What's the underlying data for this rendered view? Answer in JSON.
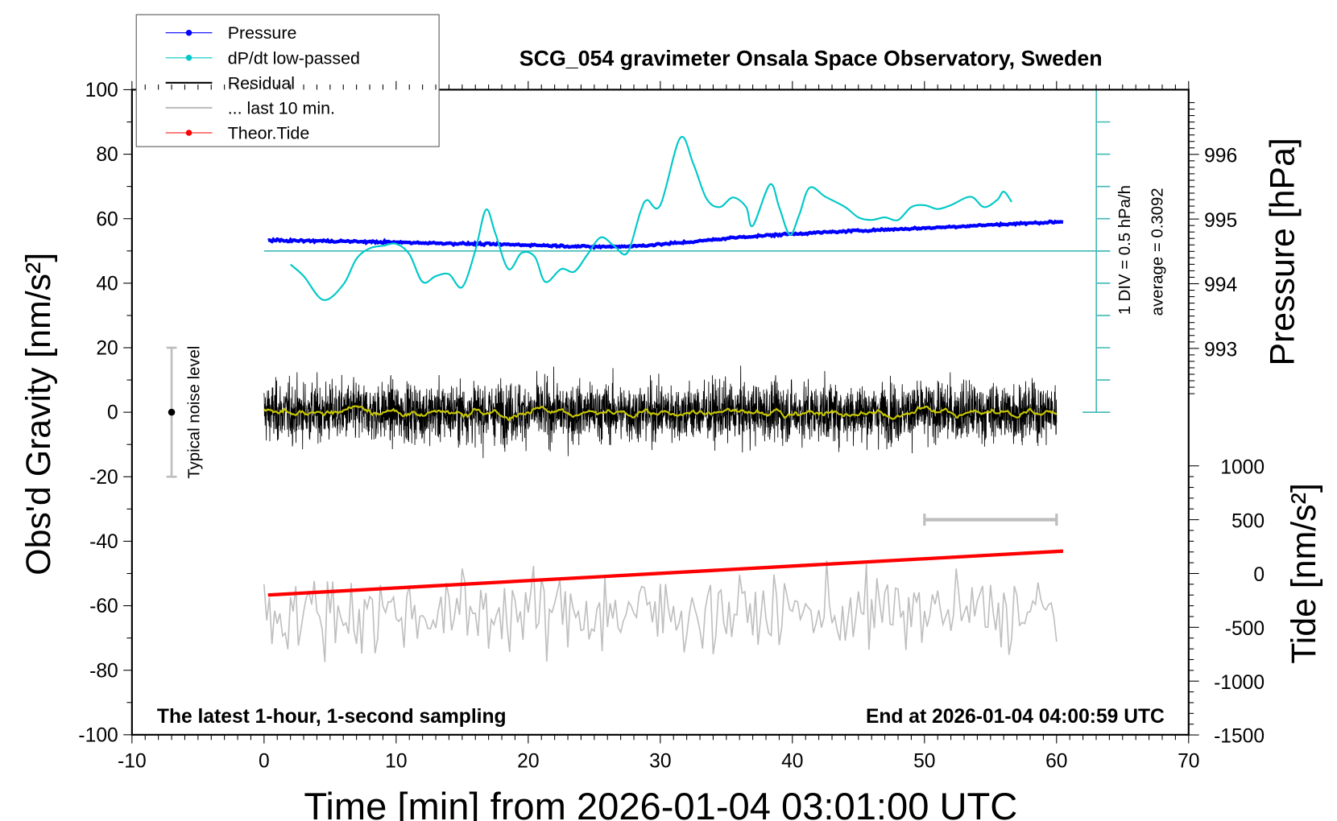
{
  "chart_data": {
    "type": "line",
    "title": "SCG_054 gravimeter Onsala Space Observatory, Sweden",
    "xlabel": "Time [min] from 2026-01-04 03:01:00 UTC",
    "ylabel": "Obs'd Gravity [nm/s²]",
    "ylabel_right_top": "Pressure [hPa]",
    "ylabel_right_bottom": "Tide [nm/s²]",
    "xlim": [
      -10,
      70
    ],
    "ylim": [
      -100,
      100
    ],
    "pressure_lim_ticks": [
      993,
      994,
      995,
      996
    ],
    "tide_ticks": [
      1000,
      500,
      0,
      -500,
      -1000,
      -1500
    ],
    "xticks": [
      -10,
      0,
      10,
      20,
      30,
      40,
      50,
      60,
      70
    ],
    "yticks": [
      100,
      80,
      60,
      40,
      20,
      0,
      -20,
      -40,
      -60,
      -80,
      -100
    ],
    "annotations": {
      "bottom_left": "The latest 1-hour, 1-second sampling",
      "bottom_right": "End at 2026-01-04 04:00:59 UTC",
      "div_label": "1 DIV = 0.5 hPa/h",
      "average_label": "average = 0.3092",
      "noise_label": "Typical noise level"
    },
    "noise_bar": {
      "x": -7,
      "center": 0,
      "half_range": 20
    },
    "last10_bar": {
      "from": 50,
      "to": 60,
      "tide": 500
    },
    "legend": [
      {
        "label": "Pressure",
        "color": "#0000ff",
        "marker": true
      },
      {
        "label": "dP/dt low-passed",
        "color": "#00c8c8",
        "marker": true
      },
      {
        "label": "Residual",
        "color": "#000000",
        "marker": false
      },
      {
        "label": "... last 10 min.",
        "color": "#bebebe",
        "marker": false
      },
      {
        "label": "Theor.Tide",
        "color": "#ff0000",
        "marker": true
      }
    ],
    "series": [
      {
        "name": "Pressure",
        "unit": "hPa",
        "color": "#0000ff",
        "x": [
          0.3,
          5,
          10,
          15,
          20,
          25,
          28,
          32,
          36,
          40,
          45,
          50,
          55,
          60.5
        ],
        "y": [
          994.67,
          994.66,
          994.64,
          994.62,
          994.6,
          994.57,
          994.58,
          994.64,
          994.72,
          994.77,
          994.82,
          994.86,
          994.91,
          994.96
        ]
      },
      {
        "name": "dP/dt low-passed",
        "unit": "hPa/h",
        "color": "#00c8c8",
        "x": [
          2,
          3,
          4.5,
          6,
          7,
          8,
          9,
          10,
          11,
          12,
          13,
          14,
          15,
          16,
          16.8,
          17.5,
          18.5,
          19.5,
          20.5,
          21.3,
          22.5,
          23.5,
          24.5,
          25.5,
          26.5,
          27.5,
          28.5,
          29,
          30,
          31.5,
          32.5,
          33.5,
          34.5,
          35.5,
          36.5,
          37,
          38.3,
          39,
          39.8,
          40.5,
          41.3,
          42.5,
          44,
          45,
          46,
          47,
          48,
          49,
          50,
          51,
          52,
          53.5,
          54.5,
          55.5,
          56,
          56.6
        ],
        "y": [
          -0.21,
          -0.39,
          -0.76,
          -0.52,
          -0.12,
          0.04,
          0.08,
          0.11,
          -0.05,
          -0.48,
          -0.39,
          -0.36,
          -0.56,
          0.01,
          0.64,
          0.28,
          -0.28,
          -0.03,
          -0.09,
          -0.48,
          -0.28,
          -0.32,
          -0.05,
          0.21,
          0.08,
          -0.03,
          0.61,
          0.79,
          0.71,
          1.75,
          1.35,
          0.81,
          0.68,
          0.83,
          0.68,
          0.39,
          1.03,
          0.68,
          0.25,
          0.55,
          0.98,
          0.84,
          0.68,
          0.52,
          0.48,
          0.52,
          0.48,
          0.68,
          0.71,
          0.65,
          0.71,
          0.84,
          0.68,
          0.79,
          0.92,
          0.76
        ],
        "zero_line": 0
      },
      {
        "name": "Residual",
        "unit": "nm/s²",
        "color": "#000000",
        "x_range": [
          0,
          60
        ],
        "std": 4.5,
        "max_abs": 20
      },
      {
        "name": "Residual smoothed",
        "color": "#c8c800"
      },
      {
        "name": "... last 10 min.",
        "color": "#bebebe",
        "baseline": -62,
        "std": 6,
        "max_abs": 18
      },
      {
        "name": "Theor.Tide",
        "unit": "nm/s²",
        "color": "#ff0000",
        "x": [
          0.3,
          60.5
        ],
        "y": [
          -200,
          208
        ]
      }
    ]
  }
}
